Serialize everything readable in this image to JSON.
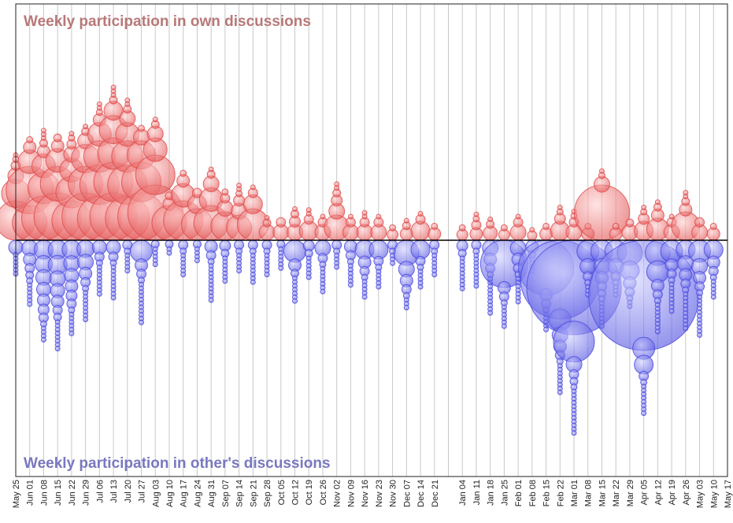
{
  "chart_data": {
    "type": "bubble",
    "categories": [
      "May 25",
      "Jun 01",
      "Jun 08",
      "Jun 15",
      "Jun 22",
      "Jun 29",
      "Jul 06",
      "Jul 13",
      "Jul 20",
      "Jul 27",
      "Aug 03",
      "Aug 10",
      "Aug 17",
      "Aug 24",
      "Aug 31",
      "Sep 07",
      "Sep 14",
      "Sep 21",
      "Sep 28",
      "Oct 05",
      "Oct 12",
      "Oct 19",
      "Oct 26",
      "Nov 02",
      "Nov 09",
      "Nov 16",
      "Nov 23",
      "Nov 30",
      "Dec 07",
      "Dec 14",
      "Dec 21",
      null,
      "Jan 04",
      "Jan 11",
      "Jan 18",
      "Jan 25",
      "Feb 01",
      "Feb 08",
      "Feb 15",
      "Feb 22",
      "Mar 01",
      "Mar 08",
      "Mar 15",
      "Mar 22",
      "Mar 29",
      "Apr 05",
      "Apr 12",
      "Apr 19",
      "Apr 26",
      "May 03",
      "May 10",
      "May 17"
    ],
    "series": [
      {
        "name": "Weekly participation in own discussions",
        "color": "#e04848",
        "direction": "up",
        "values": [
          [
            25,
            18,
            10,
            6,
            4,
            3
          ],
          [
            22,
            30,
            15,
            8,
            4
          ],
          [
            28,
            20,
            15,
            8,
            5,
            3,
            3,
            3
          ],
          [
            30,
            22,
            15,
            8,
            5
          ],
          [
            25,
            20,
            15,
            10,
            6,
            4,
            3
          ],
          [
            30,
            22,
            18,
            10,
            5,
            3
          ],
          [
            28,
            25,
            20,
            15,
            8,
            4,
            3,
            3
          ],
          [
            30,
            25,
            20,
            18,
            12,
            5,
            3,
            3,
            3
          ],
          [
            28,
            25,
            20,
            15,
            10,
            5,
            3,
            3
          ],
          [
            30,
            25,
            18,
            10,
            4
          ],
          [
            35,
            25,
            15,
            10,
            5,
            3
          ],
          [
            22,
            8,
            5
          ],
          [
            25,
            15,
            8,
            4
          ],
          [
            20,
            12,
            6
          ],
          [
            22,
            15,
            10,
            5,
            3
          ],
          [
            18,
            10,
            6,
            4
          ],
          [
            16,
            10,
            7,
            4,
            3,
            3
          ],
          [
            20,
            12,
            6,
            3
          ],
          [
            10,
            5,
            3
          ],
          [
            10,
            6
          ],
          [
            10,
            7,
            5,
            3
          ],
          [
            12,
            6,
            3,
            3
          ],
          [
            10,
            6,
            3
          ],
          [
            16,
            10,
            7,
            5,
            3,
            3
          ],
          [
            10,
            6,
            3
          ],
          [
            10,
            6,
            3,
            3
          ],
          [
            10,
            6,
            3
          ],
          [
            7,
            4
          ],
          [
            8,
            5,
            3
          ],
          [
            12,
            6,
            3
          ],
          [
            8,
            4
          ],
          [],
          [
            7,
            4
          ],
          [
            8,
            6,
            4,
            3
          ],
          [
            9,
            5,
            3
          ],
          [
            7,
            4
          ],
          [
            10,
            6,
            3
          ],
          [
            6,
            3
          ],
          [
            8,
            4
          ],
          [
            12,
            7,
            4,
            3
          ],
          [
            10,
            6,
            4,
            3
          ],
          [
            8,
            4
          ],
          [
            35,
            10,
            4,
            3
          ],
          [
            8,
            4
          ],
          [
            10,
            5
          ],
          [
            12,
            7,
            4,
            3
          ],
          [
            14,
            8,
            5,
            3
          ],
          [
            10,
            6,
            3
          ],
          [
            18,
            8,
            5,
            3,
            3
          ],
          [
            10,
            6
          ],
          [
            8,
            4
          ],
          []
        ]
      },
      {
        "name": "Weekly participation in other's discussions",
        "color": "#4848e0",
        "direction": "down",
        "values": [
          [
            9,
            3,
            3,
            3,
            3,
            3,
            3
          ],
          [
            10,
            8,
            6,
            5,
            4,
            3,
            3,
            3,
            3,
            3,
            3
          ],
          [
            12,
            11,
            10,
            9,
            8,
            7,
            6,
            4,
            3,
            3,
            3,
            3
          ],
          [
            12,
            12,
            10,
            9,
            8,
            6,
            5,
            3,
            3,
            3,
            3,
            3,
            3,
            3,
            3
          ],
          [
            12,
            10,
            9,
            8,
            7,
            6,
            4,
            3,
            3,
            3,
            3,
            3,
            3
          ],
          [
            11,
            10,
            8,
            6,
            4,
            3,
            3,
            3,
            3,
            3,
            3,
            3,
            3
          ],
          [
            9,
            6,
            4,
            3,
            3,
            3,
            3,
            3,
            3,
            3,
            3
          ],
          [
            9,
            6,
            4,
            3,
            3,
            3,
            3,
            3,
            3,
            3,
            3,
            3
          ],
          [
            6,
            4,
            3,
            3,
            3,
            3,
            3
          ],
          [
            14,
            8,
            6,
            4,
            3,
            3,
            3,
            3,
            3,
            3,
            3,
            3,
            3,
            3,
            3
          ],
          [
            5,
            3,
            3,
            3,
            3,
            3
          ],
          [
            5,
            3,
            3
          ],
          [
            6,
            4,
            3,
            3,
            3,
            3,
            3,
            3
          ],
          [
            5,
            3,
            3,
            3,
            3
          ],
          [
            8,
            6,
            4,
            3,
            3,
            3,
            3,
            3,
            3,
            3,
            3,
            3,
            3
          ],
          [
            7,
            5,
            3,
            3,
            3,
            3,
            3,
            3,
            3
          ],
          [
            6,
            4,
            3,
            3,
            3,
            3,
            3
          ],
          [
            6,
            4,
            3,
            3,
            3,
            3,
            3,
            3,
            3,
            3
          ],
          [
            6,
            4,
            3,
            3,
            3,
            3,
            3,
            3
          ],
          [
            5,
            3,
            3,
            3,
            3,
            3,
            3
          ],
          [
            14,
            8,
            5,
            3,
            3,
            3,
            3,
            3,
            3,
            3
          ],
          [
            7,
            5,
            3,
            3,
            3,
            3,
            3,
            3
          ],
          [
            10,
            6,
            4,
            3,
            3,
            3,
            3,
            3,
            3,
            3
          ],
          [
            6,
            4,
            3,
            3,
            3,
            3
          ],
          [
            8,
            6,
            4,
            3,
            3,
            3,
            3,
            3,
            3
          ],
          [
            12,
            8,
            6,
            4,
            3,
            3,
            3,
            3,
            3
          ],
          [
            12,
            6,
            4,
            3,
            3,
            3,
            3,
            3
          ],
          [
            6,
            4,
            3,
            3,
            3
          ],
          [
            16,
            10,
            8,
            6,
            4,
            3,
            3,
            3
          ],
          [
            12,
            6,
            4,
            3,
            3,
            3,
            3,
            3
          ],
          [
            6,
            4,
            3,
            3,
            3,
            3,
            3,
            3
          ],
          [],
          [
            7,
            5,
            3,
            3,
            3,
            3,
            3,
            3,
            3,
            3,
            3
          ],
          [
            6,
            4,
            3,
            3,
            3,
            3,
            3,
            3,
            3,
            3,
            3
          ],
          [
            10,
            8,
            6,
            4,
            3,
            3,
            3,
            3,
            3,
            3,
            3,
            3,
            3,
            3
          ],
          [
            30,
            8,
            6,
            4,
            3,
            3,
            3,
            3,
            3,
            3
          ],
          [
            10,
            8,
            6,
            4,
            3,
            3,
            3,
            3,
            3,
            3,
            3
          ],
          [
            8,
            5,
            3,
            3,
            3,
            3
          ],
          [
            35,
            8,
            6,
            4,
            3,
            3,
            3,
            3,
            3
          ],
          [
            50,
            14,
            10,
            8,
            6,
            4,
            3,
            3,
            3,
            3,
            3,
            3,
            3,
            3
          ],
          [
            60,
            26,
            10,
            6,
            5,
            4,
            3,
            3,
            3,
            3,
            3,
            3,
            3,
            3,
            3,
            3,
            3,
            3
          ],
          [
            14,
            10,
            6,
            4,
            3,
            3,
            3
          ],
          [
            14,
            10,
            8,
            6,
            5,
            4,
            3,
            3,
            3,
            3,
            3,
            3,
            3
          ],
          [
            14,
            10,
            6,
            4,
            3,
            3,
            3
          ],
          [
            16,
            12,
            8,
            6,
            4,
            3,
            3
          ],
          [
            70,
            14,
            12,
            6,
            4,
            3,
            3,
            3,
            3,
            3,
            3,
            3,
            3
          ],
          [
            16,
            14,
            8,
            6,
            4,
            3,
            3,
            3,
            3,
            3,
            3,
            3,
            3
          ],
          [
            14,
            8,
            6,
            4,
            3,
            3,
            3,
            3,
            3,
            3,
            3,
            3
          ],
          [
            12,
            10,
            8,
            6,
            4,
            3,
            3,
            3,
            3,
            3,
            3,
            3,
            3,
            3,
            3
          ],
          [
            14,
            10,
            8,
            6,
            4,
            3,
            3,
            3,
            3,
            3,
            3,
            3,
            3,
            3,
            3,
            3
          ],
          [
            12,
            8,
            6,
            4,
            3,
            3,
            3,
            3,
            3
          ],
          []
        ]
      }
    ]
  }
}
